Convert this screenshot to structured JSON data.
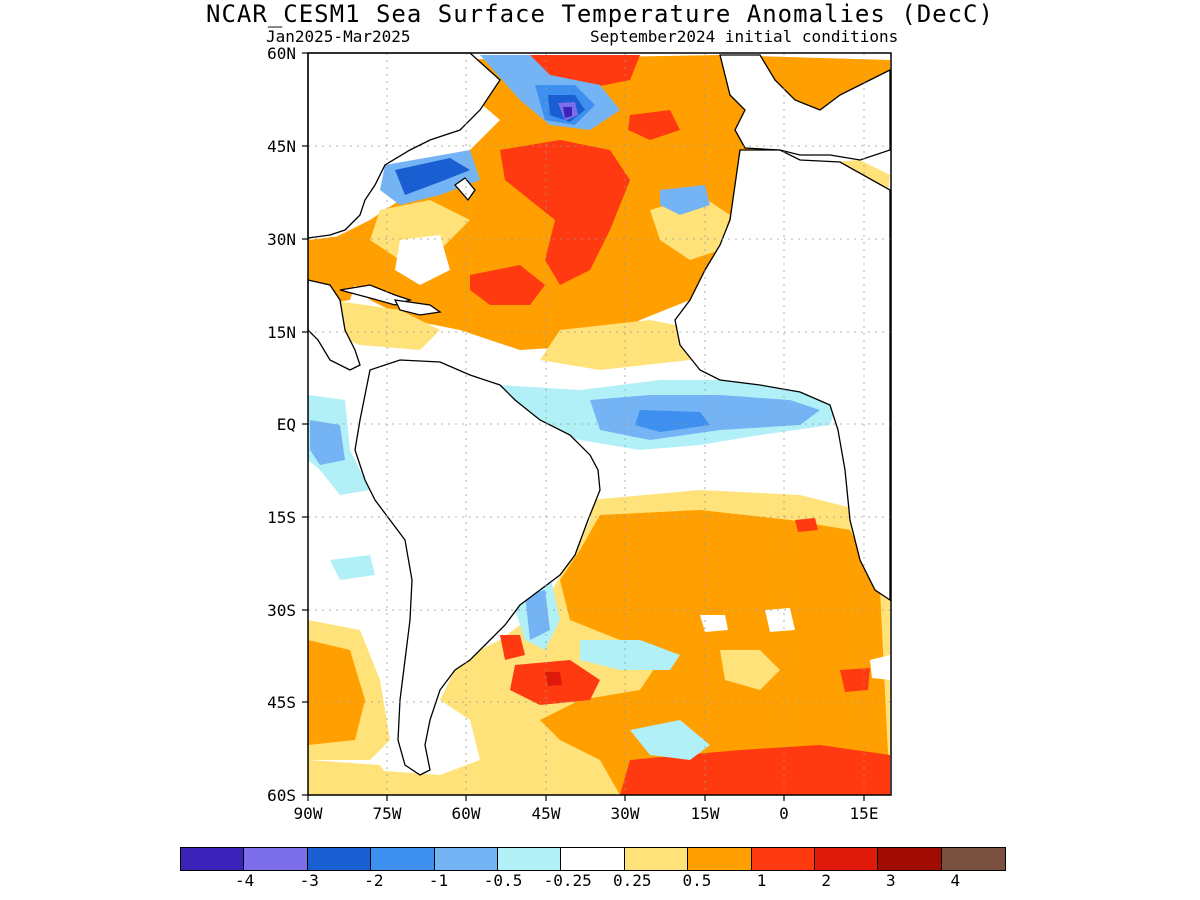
{
  "title": "NCAR_CESM1 Sea Surface Temperature Anomalies (DecC)",
  "period": "Jan2025-Mar2025",
  "init": "September2024 initial conditions",
  "lat_labels": [
    "60N",
    "45N",
    "30N",
    "15N",
    "EQ",
    "15S",
    "30S",
    "45S",
    "60S"
  ],
  "lon_labels": [
    "90W",
    "75W",
    "60W",
    "45W",
    "30W",
    "15W",
    "0",
    "15E"
  ],
  "colorbar": {
    "colors": [
      "#3b22b8",
      "#7b6ee8",
      "#1a5fd1",
      "#3d8ff0",
      "#74b4f5",
      "#b2f0f8",
      "#ffffff",
      "#ffe27a",
      "#ff9f00",
      "#ff3a10",
      "#e01a0a",
      "#a00c04",
      "#7a5040"
    ],
    "labels": [
      "-4",
      "-3",
      "-2",
      "-1",
      "-0.5",
      "-0.25",
      "0.25",
      "0.5",
      "1",
      "2",
      "3",
      "4"
    ]
  },
  "map_extent": {
    "lon_min": -90,
    "lon_max": 20,
    "lat_min": -60,
    "lat_max": 60
  }
}
